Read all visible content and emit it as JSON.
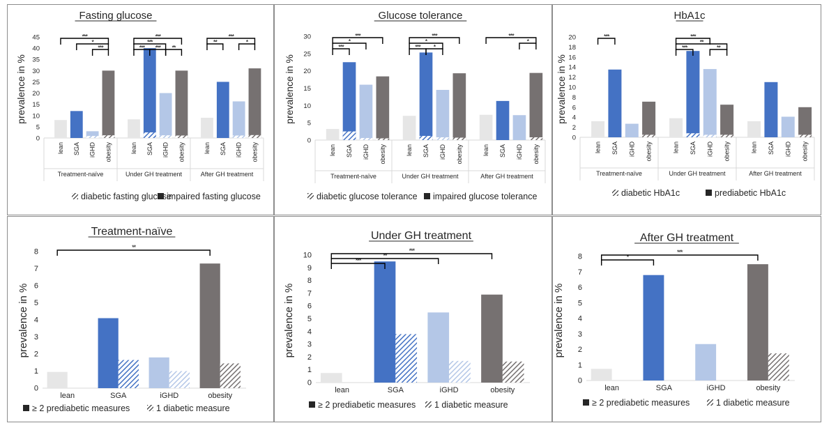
{
  "colors": {
    "lean": "#e6e6e6",
    "SGA": "#4472c4",
    "iGHD": "#b4c7e7",
    "obesity": "#767171",
    "lean_diab": "#bfbfbf",
    "SGA_diab": "#4472c4",
    "iGHD_diab": "#b4c7e7",
    "obesity_diab": "#767171",
    "text": "#262626",
    "axis": "#595959",
    "grid": "#d9d9d9"
  },
  "chart_data": [
    {
      "type": "bar",
      "title": "Fasting glucose",
      "ylabel": "prevalence in %",
      "ylim": [
        0,
        45
      ],
      "yticks": [
        0,
        5,
        10,
        15,
        20,
        25,
        30,
        35,
        40,
        45
      ],
      "groups": [
        "Treatment-naïve",
        "Under GH treatment",
        "After GH treatment"
      ],
      "categories": [
        "lean",
        "SGA",
        "iGHD",
        "obesity"
      ],
      "series": [
        {
          "name": "impaired fasting glucose",
          "values": [
            [
              8.0,
              12.0,
              3.0,
              30.0
            ],
            [
              8.3,
              40.0,
              20.0,
              30.0
            ],
            [
              9.0,
              25.0,
              16.3,
              31.0
            ]
          ]
        },
        {
          "name": "diabetic fasting glucose",
          "values": [
            [
              0,
              0,
              0.9,
              1.2
            ],
            [
              0,
              2.5,
              1.2,
              1.1
            ],
            [
              0,
              0,
              1.1,
              1.3
            ]
          ]
        }
      ],
      "legend": [
        "diabetic fasting glucose",
        "impaired fasting glucose"
      ],
      "significance": [
        {
          "group": 0,
          "from": 0,
          "to": 3,
          "label": "***",
          "level": 0
        },
        {
          "group": 0,
          "from": 1,
          "to": 3,
          "label": "*",
          "level": 1
        },
        {
          "group": 0,
          "from": 2,
          "to": 3,
          "label": "***",
          "level": 2
        },
        {
          "group": 1,
          "from": 0,
          "to": 3,
          "label": "***",
          "level": 0
        },
        {
          "group": 1,
          "from": 0,
          "to": 2,
          "label": "***",
          "level": 1
        },
        {
          "group": 1,
          "from": 0,
          "to": 1,
          "label": "***",
          "level": 2
        },
        {
          "group": 1,
          "from": 1,
          "to": 2,
          "label": "***",
          "level": 2
        },
        {
          "group": 1,
          "from": 2,
          "to": 3,
          "label": "**",
          "level": 2
        },
        {
          "group": 2,
          "from": 0,
          "to": 3,
          "label": "***",
          "level": 0
        },
        {
          "group": 2,
          "from": 0,
          "to": 1,
          "label": "**",
          "level": 1
        },
        {
          "group": 2,
          "from": 2,
          "to": 3,
          "label": "*",
          "level": 1
        }
      ]
    },
    {
      "type": "bar",
      "title": "Glucose tolerance",
      "ylabel": "prevalence in %",
      "ylim": [
        0,
        30
      ],
      "yticks": [
        0,
        5,
        10,
        15,
        20,
        25,
        30
      ],
      "groups": [
        "Treatment-naïve",
        "Under GH treatment",
        "After GH treatment"
      ],
      "categories": [
        "lean",
        "SGA",
        "iGHD",
        "obesity"
      ],
      "series": [
        {
          "name": "impaired glucose tolerance",
          "values": [
            [
              3.2,
              22.5,
              16.0,
              18.4
            ],
            [
              7.0,
              25.3,
              14.5,
              19.3
            ],
            [
              7.3,
              11.3,
              7.2,
              19.4
            ]
          ]
        },
        {
          "name": "diabetic glucose tolerance",
          "values": [
            [
              0,
              2.5,
              0.6,
              0.5
            ],
            [
              0,
              1.2,
              0.8,
              0.7
            ],
            [
              0,
              0,
              0,
              0.8
            ]
          ]
        }
      ],
      "legend": [
        "diabetic glucose tolerance",
        "impaired glucose tolerance"
      ],
      "significance": [
        {
          "group": 0,
          "from": 0,
          "to": 3,
          "label": "***",
          "level": 0
        },
        {
          "group": 0,
          "from": 0,
          "to": 2,
          "label": "*",
          "level": 1
        },
        {
          "group": 0,
          "from": 0,
          "to": 1,
          "label": "***",
          "level": 2
        },
        {
          "group": 1,
          "from": 0,
          "to": 3,
          "label": "***",
          "level": 0
        },
        {
          "group": 1,
          "from": 0,
          "to": 2,
          "label": "*",
          "level": 1
        },
        {
          "group": 1,
          "from": 0,
          "to": 1,
          "label": "***",
          "level": 2
        },
        {
          "group": 1,
          "from": 1,
          "to": 2,
          "label": "*",
          "level": 2
        },
        {
          "group": 2,
          "from": 0,
          "to": 3,
          "label": "***",
          "level": 0
        },
        {
          "group": 2,
          "from": 2,
          "to": 3,
          "label": "*",
          "level": 1
        }
      ]
    },
    {
      "type": "bar",
      "title": "HbA1c",
      "ylabel": "prevalence in %",
      "ylim": [
        0,
        20
      ],
      "yticks": [
        0,
        2,
        4,
        6,
        8,
        10,
        12,
        14,
        16,
        18,
        20
      ],
      "groups": [
        "Treatment-naïve",
        "Under GH treatment",
        "After GH treatment"
      ],
      "categories": [
        "lean",
        "SGA",
        "iGHD",
        "obesity"
      ],
      "series": [
        {
          "name": "prediabetic HbA1c",
          "values": [
            [
              3.2,
              13.5,
              2.7,
              7.1
            ],
            [
              3.8,
              17.2,
              13.6,
              6.5
            ],
            [
              3.2,
              11.0,
              4.1,
              6.0
            ]
          ]
        },
        {
          "name": "diabetic HbA1c",
          "values": [
            [
              0,
              0,
              0,
              0.5
            ],
            [
              0,
              0.8,
              0.5,
              0.5
            ],
            [
              0,
              0,
              0,
              0.5
            ]
          ]
        }
      ],
      "legend": [
        "diabetic HbA1c",
        "prediabetic HbA1c"
      ],
      "significance": [
        {
          "group": 0,
          "from": 0,
          "to": 1,
          "label": "***",
          "level": 0
        },
        {
          "group": 1,
          "from": 0,
          "to": 2,
          "label": "***",
          "level": 0
        },
        {
          "group": 1,
          "from": 0,
          "to": 3,
          "label": "**",
          "level": 1
        },
        {
          "group": 1,
          "from": 0,
          "to": 1,
          "label": "***",
          "level": 2
        },
        {
          "group": 1,
          "from": 2,
          "to": 3,
          "label": "**",
          "level": 2
        }
      ]
    },
    {
      "type": "bar",
      "title": "Treatment-naïve",
      "ylabel": "prevalence in %",
      "ylim": [
        0,
        8
      ],
      "yticks": [
        0,
        1,
        2,
        3,
        4,
        5,
        6,
        7,
        8
      ],
      "categories": [
        "lean",
        "SGA",
        "iGHD",
        "obesity"
      ],
      "series": [
        {
          "name": "≥ 2 prediabetic measures",
          "values": [
            0.95,
            4.1,
            1.8,
            7.3
          ]
        },
        {
          "name": "1 diabetic measure",
          "values": [
            0,
            1.65,
            1.0,
            1.45
          ]
        }
      ],
      "legend": [
        "≥ 2 prediabetic measures",
        "1 diabetic measure"
      ],
      "significance": [
        {
          "from": 0,
          "to": 3,
          "label": "**",
          "level": 0
        }
      ]
    },
    {
      "type": "bar",
      "title": "Under GH treatment",
      "ylabel": "prevalence in %",
      "ylim": [
        0,
        10
      ],
      "yticks": [
        0,
        1,
        2,
        3,
        4,
        5,
        6,
        7,
        8,
        9,
        10
      ],
      "categories": [
        "lean",
        "SGA",
        "iGHD",
        "obesity"
      ],
      "series": [
        {
          "name": "≥ 2 prediabetic measures",
          "values": [
            0.75,
            9.5,
            5.5,
            6.9
          ]
        },
        {
          "name": "1 diabetic measure",
          "values": [
            0,
            3.8,
            1.7,
            1.65
          ]
        }
      ],
      "legend": [
        "≥ 2 prediabetic measures",
        "1 diabetic measure"
      ],
      "significance": [
        {
          "from": 0,
          "to": 3,
          "label": "***",
          "level": 0
        },
        {
          "from": 0,
          "to": 2,
          "label": "**",
          "level": 1
        },
        {
          "from": 0,
          "to": 1,
          "label": "***",
          "level": 2
        }
      ]
    },
    {
      "type": "bar",
      "title": "After GH treatment",
      "ylabel": "prevalence in %",
      "ylim": [
        0,
        8
      ],
      "yticks": [
        0,
        1,
        2,
        3,
        4,
        5,
        6,
        7,
        8
      ],
      "categories": [
        "lean",
        "SGA",
        "iGHD",
        "obesity"
      ],
      "series": [
        {
          "name": "≥ 2 prediabetic measures",
          "values": [
            0.75,
            6.8,
            2.35,
            7.5
          ]
        },
        {
          "name": "1 diabetic measure",
          "values": [
            0,
            0,
            0,
            1.75
          ]
        }
      ],
      "legend": [
        "≥ 2 prediabetic measures",
        "1 diabetic measure"
      ],
      "significance": [
        {
          "from": 0,
          "to": 3,
          "label": "***",
          "level": 0
        },
        {
          "from": 0,
          "to": 1,
          "label": "*",
          "level": 1
        }
      ]
    }
  ]
}
